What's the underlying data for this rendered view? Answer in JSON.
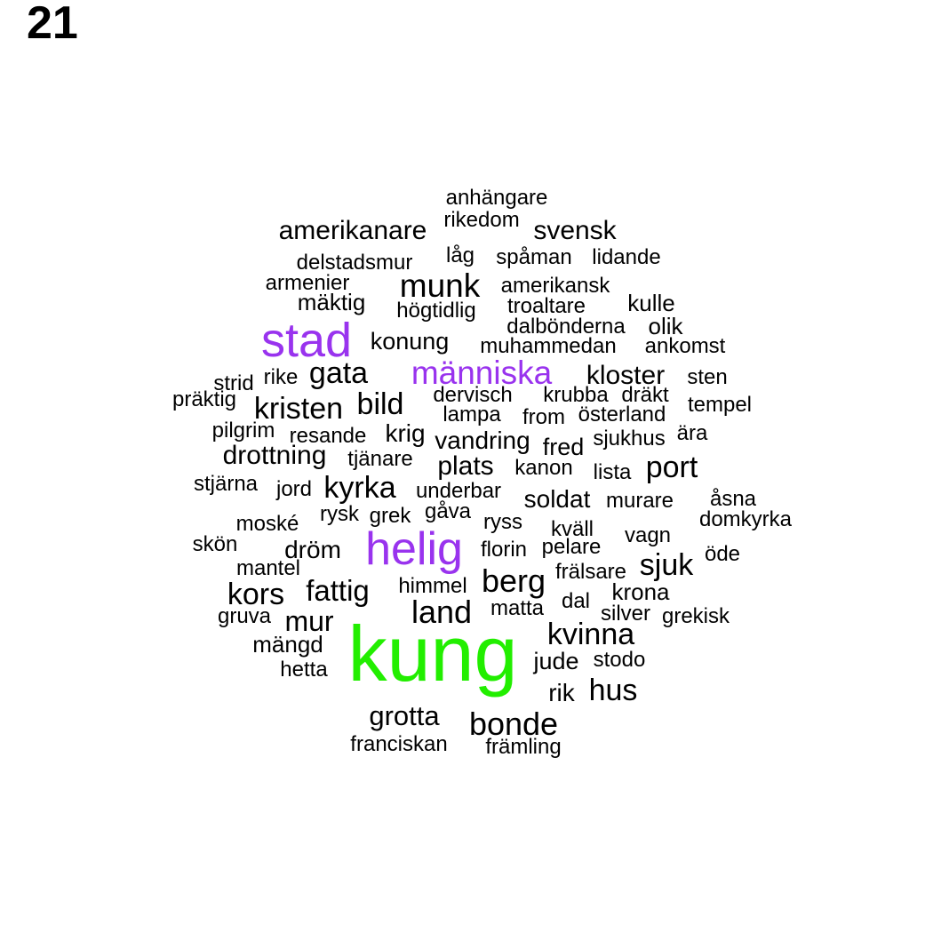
{
  "page_number": "21",
  "colors": {
    "large": "#22ee00",
    "medium": "#9933ee",
    "small": "#000000"
  },
  "words": [
    {
      "text": "kung",
      "color": "large"
    },
    {
      "text": "stad",
      "color": "medium"
    },
    {
      "text": "helig",
      "color": "medium"
    },
    {
      "text": "människa",
      "color": "medium"
    },
    {
      "text": "anhängare"
    },
    {
      "text": "rikedom"
    },
    {
      "text": "amerikanare"
    },
    {
      "text": "svensk"
    },
    {
      "text": "låg"
    },
    {
      "text": "spåman"
    },
    {
      "text": "lidande"
    },
    {
      "text": "delstadsmur"
    },
    {
      "text": "armenier"
    },
    {
      "text": "munk"
    },
    {
      "text": "amerikansk"
    },
    {
      "text": "mäktig"
    },
    {
      "text": "högtidlig"
    },
    {
      "text": "troaltare"
    },
    {
      "text": "kulle"
    },
    {
      "text": "dalbönderna"
    },
    {
      "text": "olik"
    },
    {
      "text": "konung"
    },
    {
      "text": "muhammedan"
    },
    {
      "text": "ankomst"
    },
    {
      "text": "strid"
    },
    {
      "text": "rike"
    },
    {
      "text": "gata"
    },
    {
      "text": "kloster"
    },
    {
      "text": "sten"
    },
    {
      "text": "präktig"
    },
    {
      "text": "kristen"
    },
    {
      "text": "bild"
    },
    {
      "text": "dervisch"
    },
    {
      "text": "krubba"
    },
    {
      "text": "dräkt"
    },
    {
      "text": "tempel"
    },
    {
      "text": "lampa"
    },
    {
      "text": "from"
    },
    {
      "text": "österland"
    },
    {
      "text": "pilgrim"
    },
    {
      "text": "resande"
    },
    {
      "text": "krig"
    },
    {
      "text": "vandring"
    },
    {
      "text": "fred"
    },
    {
      "text": "sjukhus"
    },
    {
      "text": "ära"
    },
    {
      "text": "drottning"
    },
    {
      "text": "tjänare"
    },
    {
      "text": "plats"
    },
    {
      "text": "kanon"
    },
    {
      "text": "lista"
    },
    {
      "text": "port"
    },
    {
      "text": "stjärna"
    },
    {
      "text": "jord"
    },
    {
      "text": "kyrka"
    },
    {
      "text": "underbar"
    },
    {
      "text": "soldat"
    },
    {
      "text": "murare"
    },
    {
      "text": "åsna"
    },
    {
      "text": "moské"
    },
    {
      "text": "rysk"
    },
    {
      "text": "grek"
    },
    {
      "text": "gåva"
    },
    {
      "text": "ryss"
    },
    {
      "text": "kväll"
    },
    {
      "text": "domkyrka"
    },
    {
      "text": "skön"
    },
    {
      "text": "dröm"
    },
    {
      "text": "florin"
    },
    {
      "text": "pelare"
    },
    {
      "text": "vagn"
    },
    {
      "text": "sjuk"
    },
    {
      "text": "öde"
    },
    {
      "text": "mantel"
    },
    {
      "text": "frälsare"
    },
    {
      "text": "kors"
    },
    {
      "text": "fattig"
    },
    {
      "text": "himmel"
    },
    {
      "text": "berg"
    },
    {
      "text": "krona"
    },
    {
      "text": "gruva"
    },
    {
      "text": "land"
    },
    {
      "text": "matta"
    },
    {
      "text": "dal"
    },
    {
      "text": "silver"
    },
    {
      "text": "grekisk"
    },
    {
      "text": "mur"
    },
    {
      "text": "mängd"
    },
    {
      "text": "kvinna"
    },
    {
      "text": "hetta"
    },
    {
      "text": "jude"
    },
    {
      "text": "stodo"
    },
    {
      "text": "rik"
    },
    {
      "text": "hus"
    },
    {
      "text": "grotta"
    },
    {
      "text": "bonde"
    },
    {
      "text": "franciskan"
    },
    {
      "text": "främling"
    }
  ]
}
